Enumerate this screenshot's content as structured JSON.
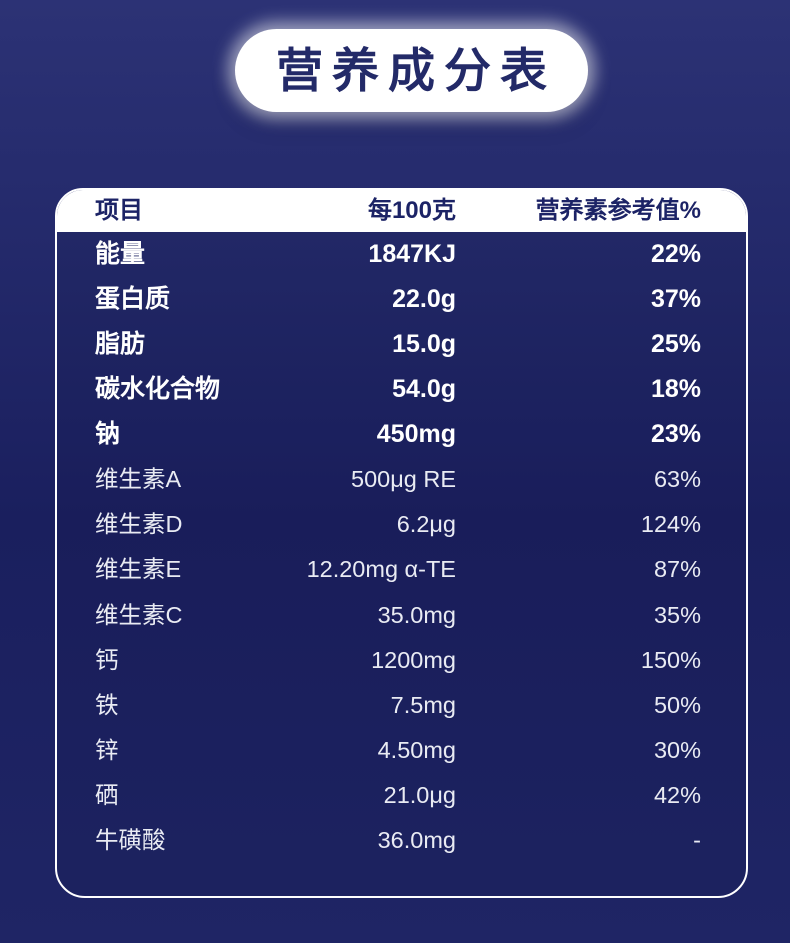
{
  "title": "营养成分表",
  "table": {
    "headers": {
      "item": "项目",
      "per_100g": "每100克",
      "nrv": "营养素参考值%"
    },
    "rows": [
      {
        "name": "能量",
        "amount": "1847KJ",
        "nrv": "22%",
        "bold": true
      },
      {
        "name": "蛋白质",
        "amount": "22.0g",
        "nrv": "37%",
        "bold": true
      },
      {
        "name": "脂肪",
        "amount": "15.0g",
        "nrv": "25%",
        "bold": true
      },
      {
        "name": "碳水化合物",
        "amount": "54.0g",
        "nrv": "18%",
        "bold": true
      },
      {
        "name": "钠",
        "amount": "450mg",
        "nrv": "23%",
        "bold": true
      },
      {
        "name": "维生素A",
        "amount": "500μg RE",
        "nrv": "63%",
        "bold": false
      },
      {
        "name": "维生素D",
        "amount": "6.2μg",
        "nrv": "124%",
        "bold": false
      },
      {
        "name": "维生素E",
        "amount": "12.20mg α-TE",
        "nrv": "87%",
        "bold": false
      },
      {
        "name": "维生素C",
        "amount": "35.0mg",
        "nrv": "35%",
        "bold": false
      },
      {
        "name": "钙",
        "amount": "1200mg",
        "nrv": "150%",
        "bold": false
      },
      {
        "name": "铁",
        "amount": "7.5mg",
        "nrv": "50%",
        "bold": false
      },
      {
        "name": "锌",
        "amount": "4.50mg",
        "nrv": "30%",
        "bold": false
      },
      {
        "name": "硒",
        "amount": "21.0μg",
        "nrv": "42%",
        "bold": false
      },
      {
        "name": "牛磺酸",
        "amount": "36.0mg",
        "nrv": "-",
        "bold": false
      }
    ]
  },
  "colors": {
    "background_top": "#2c3275",
    "background_bottom": "#1f2565",
    "panel_text_navy": "#1c2366",
    "title_text_navy": "#232a68",
    "row_text_white": "#ffffff",
    "border_white": "#ffffff"
  }
}
